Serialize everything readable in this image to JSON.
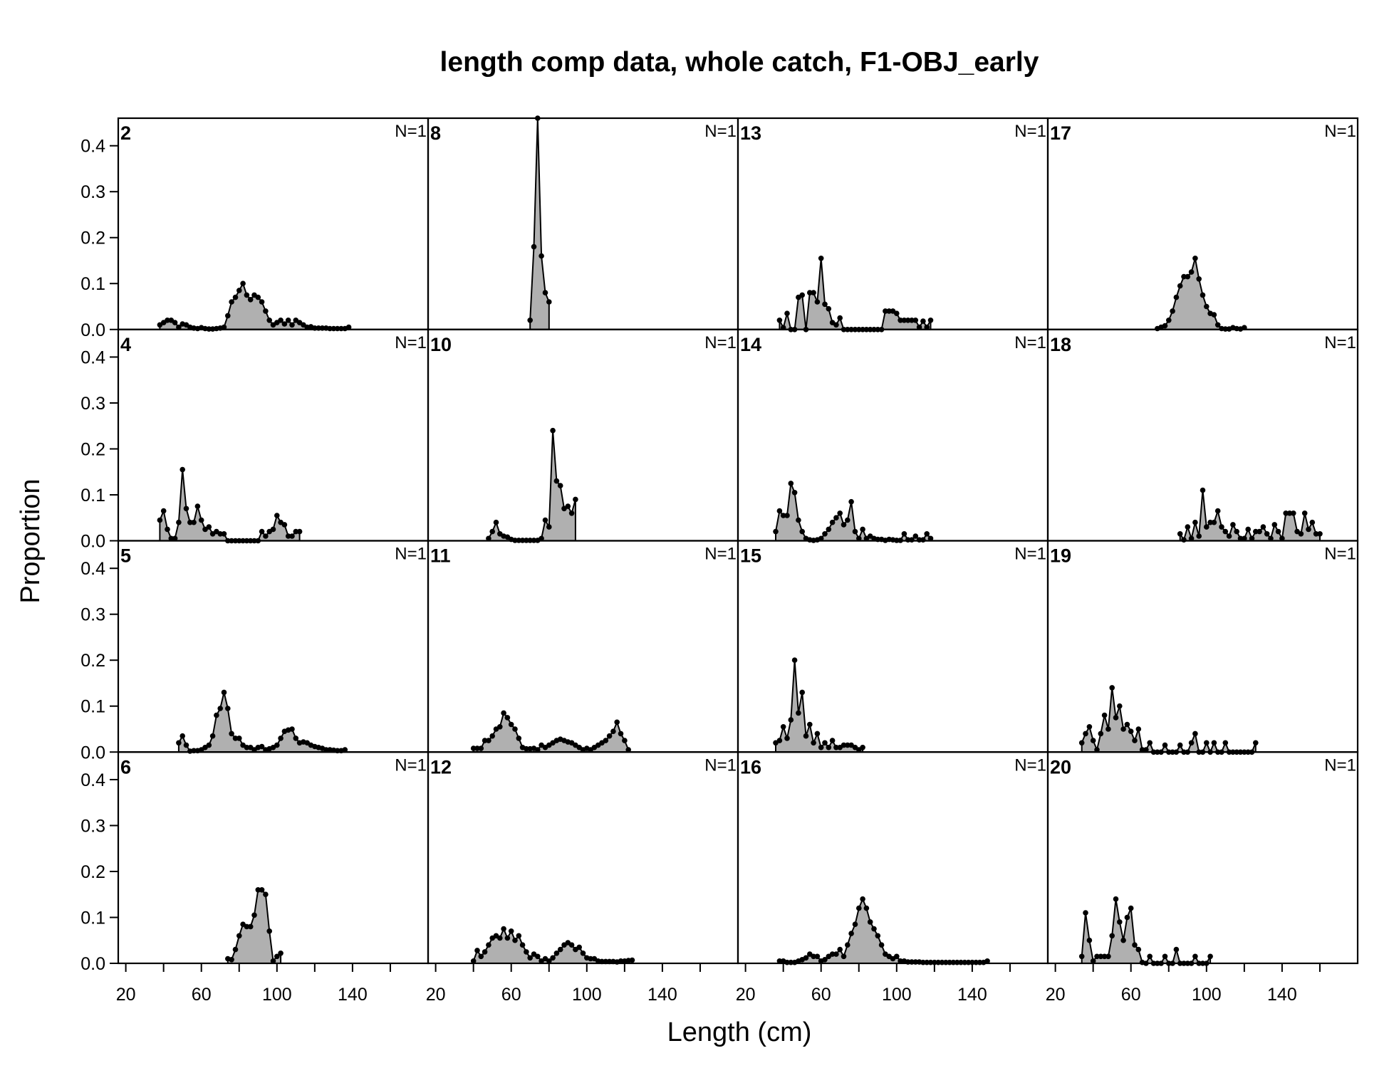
{
  "chart_data": {
    "type": "area",
    "title": "length comp data, whole catch, F1-OBJ_early",
    "xlabel": "Length (cm)",
    "ylabel": "Proportion",
    "xlim": [
      16,
      180
    ],
    "ylim": [
      0,
      0.46
    ],
    "x_ticks": [
      20,
      60,
      100,
      140
    ],
    "x_minor_ticks": [
      40,
      80,
      120,
      160
    ],
    "y_ticks": [
      "0.0",
      "0.1",
      "0.2",
      "0.3",
      "0.4"
    ],
    "layout": {
      "columns": 4,
      "rows": 4
    },
    "panels": [
      {
        "label": "2",
        "n": "N=1",
        "x": [
          38,
          40,
          42,
          44,
          46,
          48,
          50,
          52,
          54,
          56,
          58,
          60,
          62,
          64,
          66,
          68,
          70,
          72,
          74,
          76,
          78,
          80,
          82,
          84,
          86,
          88,
          90,
          92,
          94,
          96,
          98,
          100,
          102,
          104,
          106,
          108,
          110,
          112,
          114,
          116,
          118,
          120,
          122,
          124,
          126,
          128,
          130,
          132,
          134,
          136,
          138
        ],
        "y": [
          0.01,
          0.015,
          0.02,
          0.02,
          0.015,
          0.005,
          0.012,
          0.01,
          0.005,
          0.003,
          0.002,
          0.004,
          0.002,
          0.001,
          0.001,
          0.002,
          0.003,
          0.005,
          0.03,
          0.06,
          0.07,
          0.085,
          0.1,
          0.075,
          0.065,
          0.075,
          0.07,
          0.06,
          0.04,
          0.02,
          0.01,
          0.015,
          0.02,
          0.012,
          0.02,
          0.01,
          0.02,
          0.015,
          0.01,
          0.005,
          0.006,
          0.003,
          0.003,
          0.003,
          0.003,
          0.002,
          0.002,
          0.002,
          0.002,
          0.002,
          0.005
        ]
      },
      {
        "label": "4",
        "n": "N=1",
        "x": [
          38,
          40,
          42,
          44,
          46,
          48,
          50,
          52,
          54,
          56,
          58,
          60,
          62,
          64,
          66,
          68,
          70,
          72,
          74,
          76,
          78,
          80,
          82,
          84,
          86,
          88,
          90,
          92,
          94,
          96,
          98,
          100,
          102,
          104,
          106,
          108,
          110,
          112
        ],
        "y": [
          0.045,
          0.065,
          0.025,
          0.005,
          0.005,
          0.04,
          0.155,
          0.07,
          0.04,
          0.04,
          0.075,
          0.045,
          0.025,
          0.03,
          0.015,
          0.02,
          0.015,
          0.015,
          0,
          0,
          0,
          0,
          0,
          0,
          0,
          0,
          0,
          0.02,
          0.01,
          0.02,
          0.025,
          0.055,
          0.04,
          0.035,
          0.01,
          0.01,
          0.02,
          0.02
        ]
      },
      {
        "label": "5",
        "n": "N=1",
        "x": [
          48,
          50,
          52,
          54,
          56,
          58,
          60,
          62,
          64,
          66,
          68,
          70,
          72,
          74,
          76,
          78,
          80,
          82,
          84,
          86,
          88,
          90,
          92,
          94,
          96,
          98,
          100,
          102,
          104,
          106,
          108,
          110,
          112,
          114,
          116,
          118,
          120,
          122,
          124,
          126,
          128,
          130,
          132,
          134,
          136
        ],
        "y": [
          0.02,
          0.035,
          0.015,
          0.002,
          0.003,
          0.003,
          0.005,
          0.01,
          0.015,
          0.035,
          0.08,
          0.095,
          0.13,
          0.095,
          0.04,
          0.03,
          0.03,
          0.015,
          0.01,
          0.01,
          0.005,
          0.01,
          0.012,
          0.005,
          0.007,
          0.01,
          0.015,
          0.03,
          0.045,
          0.048,
          0.05,
          0.03,
          0.02,
          0.022,
          0.02,
          0.015,
          0.012,
          0.01,
          0.008,
          0.005,
          0.005,
          0.004,
          0.003,
          0.003,
          0.005
        ]
      },
      {
        "label": "6",
        "n": "N=1",
        "x": [
          74,
          76,
          78,
          80,
          82,
          84,
          86,
          88,
          90,
          92,
          94,
          96,
          98,
          100,
          102
        ],
        "y": [
          0.01,
          0.008,
          0.03,
          0.06,
          0.085,
          0.08,
          0.08,
          0.105,
          0.16,
          0.16,
          0.15,
          0.07,
          0.005,
          0.015,
          0.022
        ]
      },
      {
        "label": "8",
        "n": "N=1",
        "x": [
          70,
          72,
          74,
          76,
          78,
          80
        ],
        "y": [
          0.02,
          0.18,
          0.46,
          0.16,
          0.08,
          0.06
        ]
      },
      {
        "label": "10",
        "n": "N=1",
        "x": [
          48,
          50,
          52,
          54,
          56,
          58,
          60,
          62,
          64,
          66,
          68,
          70,
          72,
          74,
          76,
          78,
          80,
          82,
          84,
          86,
          88,
          90,
          92,
          94
        ],
        "y": [
          0.005,
          0.02,
          0.04,
          0.015,
          0.01,
          0.008,
          0.003,
          0.001,
          0.001,
          0.001,
          0.001,
          0.001,
          0.001,
          0.001,
          0.005,
          0.045,
          0.03,
          0.24,
          0.13,
          0.12,
          0.07,
          0.075,
          0.06,
          0.09
        ]
      },
      {
        "label": "11",
        "n": "N=1",
        "x": [
          40,
          42,
          44,
          46,
          48,
          50,
          52,
          54,
          56,
          58,
          60,
          62,
          64,
          66,
          68,
          70,
          72,
          74,
          76,
          78,
          80,
          82,
          84,
          86,
          88,
          90,
          92,
          94,
          96,
          98,
          100,
          102,
          104,
          106,
          108,
          110,
          112,
          114,
          116,
          118,
          120,
          122
        ],
        "y": [
          0.008,
          0.008,
          0.008,
          0.025,
          0.025,
          0.035,
          0.05,
          0.055,
          0.085,
          0.075,
          0.06,
          0.05,
          0.03,
          0.01,
          0.007,
          0.007,
          0.008,
          0.005,
          0.015,
          0.01,
          0.015,
          0.02,
          0.025,
          0.028,
          0.025,
          0.022,
          0.02,
          0.015,
          0.01,
          0.005,
          0.008,
          0.005,
          0.01,
          0.015,
          0.02,
          0.025,
          0.035,
          0.045,
          0.065,
          0.04,
          0.025,
          0.005
        ]
      },
      {
        "label": "12",
        "n": "N=1",
        "x": [
          40,
          42,
          44,
          46,
          48,
          50,
          52,
          54,
          56,
          58,
          60,
          62,
          64,
          66,
          68,
          70,
          72,
          74,
          76,
          78,
          80,
          82,
          84,
          86,
          88,
          90,
          92,
          94,
          96,
          98,
          100,
          102,
          104,
          106,
          108,
          110,
          112,
          114,
          116,
          118,
          120,
          122,
          124
        ],
        "y": [
          0.005,
          0.028,
          0.015,
          0.025,
          0.04,
          0.055,
          0.06,
          0.055,
          0.075,
          0.055,
          0.07,
          0.05,
          0.06,
          0.04,
          0.025,
          0.012,
          0.02,
          0.015,
          0.005,
          0.01,
          0.005,
          0.012,
          0.022,
          0.03,
          0.04,
          0.045,
          0.04,
          0.03,
          0.035,
          0.022,
          0.012,
          0.01,
          0.01,
          0.005,
          0.004,
          0.004,
          0.004,
          0.004,
          0.003,
          0.005,
          0.005,
          0.006,
          0.007
        ]
      },
      {
        "label": "13",
        "n": "N=1",
        "x": [
          38,
          40,
          42,
          44,
          46,
          48,
          50,
          52,
          54,
          56,
          58,
          60,
          62,
          64,
          66,
          68,
          70,
          72,
          74,
          76,
          78,
          80,
          82,
          84,
          86,
          88,
          90,
          92,
          94,
          96,
          98,
          100,
          102,
          104,
          106,
          108,
          110,
          112,
          114,
          116,
          118
        ],
        "y": [
          0.02,
          0.004,
          0.035,
          0,
          0,
          0.07,
          0.075,
          0,
          0.08,
          0.08,
          0.06,
          0.155,
          0.055,
          0.045,
          0.015,
          0.01,
          0.025,
          0,
          0,
          0,
          0,
          0,
          0,
          0,
          0,
          0,
          0,
          0,
          0.04,
          0.04,
          0.04,
          0.035,
          0.02,
          0.02,
          0.02,
          0.02,
          0.02,
          0.005,
          0.018,
          0.005,
          0.02
        ]
      },
      {
        "label": "14",
        "n": "N=1",
        "x": [
          36,
          38,
          40,
          42,
          44,
          46,
          48,
          50,
          52,
          54,
          56,
          58,
          60,
          62,
          64,
          66,
          68,
          70,
          72,
          74,
          76,
          78,
          80,
          82,
          84,
          86,
          88,
          90,
          92,
          94,
          96,
          98,
          100,
          102,
          104,
          106,
          108,
          110,
          112,
          114,
          116,
          118
        ],
        "y": [
          0.02,
          0.065,
          0.055,
          0.055,
          0.125,
          0.105,
          0.045,
          0.02,
          0.005,
          0.002,
          0.001,
          0.002,
          0.005,
          0.015,
          0.025,
          0.04,
          0.05,
          0.06,
          0.035,
          0.045,
          0.085,
          0.02,
          0.005,
          0.025,
          0.005,
          0.01,
          0.005,
          0.003,
          0.003,
          0.001,
          0.003,
          0.002,
          0.001,
          0.001,
          0.015,
          0.002,
          0.002,
          0.01,
          0.002,
          0.002,
          0.015,
          0.005
        ]
      },
      {
        "label": "15",
        "n": "N=1",
        "x": [
          36,
          38,
          40,
          42,
          44,
          46,
          48,
          50,
          52,
          54,
          56,
          58,
          60,
          62,
          64,
          66,
          68,
          70,
          72,
          74,
          76,
          78,
          80,
          82
        ],
        "y": [
          0.02,
          0.025,
          0.055,
          0.03,
          0.07,
          0.2,
          0.085,
          0.13,
          0.035,
          0.06,
          0.02,
          0.04,
          0.01,
          0.02,
          0.01,
          0.025,
          0.01,
          0.01,
          0.015,
          0.015,
          0.015,
          0.01,
          0.005,
          0.01
        ]
      },
      {
        "label": "16",
        "n": "N=1",
        "x": [
          38,
          40,
          42,
          44,
          46,
          48,
          50,
          52,
          54,
          56,
          58,
          60,
          62,
          64,
          66,
          68,
          70,
          72,
          74,
          76,
          78,
          80,
          82,
          84,
          86,
          88,
          90,
          92,
          94,
          96,
          98,
          100,
          102,
          104,
          106,
          108,
          110,
          112,
          114,
          116,
          118,
          120,
          122,
          124,
          126,
          128,
          130,
          132,
          134,
          136,
          138,
          140,
          142,
          144,
          146,
          148
        ],
        "y": [
          0.005,
          0.005,
          0.002,
          0.002,
          0.002,
          0.005,
          0.008,
          0.012,
          0.02,
          0.015,
          0.015,
          0.005,
          0.008,
          0.015,
          0.02,
          0.02,
          0.03,
          0.015,
          0.04,
          0.065,
          0.085,
          0.12,
          0.14,
          0.12,
          0.09,
          0.075,
          0.06,
          0.04,
          0.02,
          0.015,
          0.01,
          0.015,
          0.005,
          0.005,
          0.003,
          0.003,
          0.003,
          0.003,
          0.002,
          0.002,
          0.002,
          0.002,
          0.002,
          0.002,
          0.002,
          0.002,
          0.002,
          0.002,
          0.002,
          0.002,
          0.002,
          0.002,
          0.002,
          0.002,
          0.002,
          0.005
        ]
      },
      {
        "label": "17",
        "n": "N=1",
        "x": [
          74,
          76,
          78,
          80,
          82,
          84,
          86,
          88,
          90,
          92,
          94,
          96,
          98,
          100,
          102,
          104,
          106,
          108,
          110,
          112,
          114,
          116,
          118,
          120
        ],
        "y": [
          0.002,
          0.005,
          0.008,
          0.02,
          0.04,
          0.07,
          0.095,
          0.115,
          0.115,
          0.125,
          0.155,
          0.11,
          0.075,
          0.05,
          0.035,
          0.032,
          0.01,
          0.002,
          0.001,
          0.001,
          0.004,
          0.002,
          0.001,
          0.004
        ]
      },
      {
        "label": "18",
        "n": "N=1",
        "x": [
          86,
          88,
          90,
          92,
          94,
          96,
          98,
          100,
          102,
          104,
          106,
          108,
          110,
          112,
          114,
          116,
          118,
          120,
          122,
          124,
          126,
          128,
          130,
          132,
          134,
          136,
          138,
          140,
          142,
          144,
          146,
          148,
          150,
          152,
          154,
          156,
          158,
          160
        ],
        "y": [
          0.015,
          0.002,
          0.03,
          0.005,
          0.04,
          0.01,
          0.11,
          0.03,
          0.04,
          0.04,
          0.065,
          0.03,
          0.02,
          0.01,
          0.035,
          0.02,
          0.005,
          0.005,
          0.025,
          0.005,
          0.02,
          0.02,
          0.03,
          0.015,
          0.005,
          0.035,
          0.02,
          0.005,
          0.06,
          0.06,
          0.06,
          0.02,
          0.015,
          0.06,
          0.025,
          0.04,
          0.015,
          0.015
        ]
      },
      {
        "label": "19",
        "n": "N=1",
        "x": [
          34,
          36,
          38,
          40,
          42,
          44,
          46,
          48,
          50,
          52,
          54,
          56,
          58,
          60,
          62,
          64,
          66,
          68,
          70,
          72,
          74,
          76,
          78,
          80,
          82,
          84,
          86,
          88,
          90,
          92,
          94,
          96,
          98,
          100,
          102,
          104,
          106,
          108,
          110,
          112,
          114,
          116,
          118,
          120,
          122,
          124,
          126
        ],
        "y": [
          0.02,
          0.04,
          0.055,
          0.025,
          0.005,
          0.04,
          0.08,
          0.05,
          0.14,
          0.075,
          0.1,
          0.05,
          0.06,
          0.045,
          0.025,
          0.05,
          0.005,
          0.005,
          0.02,
          0,
          0,
          0,
          0.015,
          0,
          0,
          0,
          0.015,
          0,
          0,
          0.02,
          0.04,
          0,
          0,
          0.02,
          0,
          0.02,
          0,
          0,
          0.02,
          0,
          0,
          0,
          0,
          0,
          0,
          0,
          0.02
        ]
      },
      {
        "label": "20",
        "n": "N=1",
        "x": [
          34,
          36,
          38,
          40,
          42,
          44,
          46,
          48,
          50,
          52,
          54,
          56,
          58,
          60,
          62,
          64,
          66,
          68,
          70,
          72,
          74,
          76,
          78,
          80,
          82,
          84,
          86,
          88,
          90,
          92,
          94,
          96,
          98,
          100,
          102
        ],
        "y": [
          0.015,
          0.11,
          0.05,
          0.005,
          0.015,
          0.015,
          0.015,
          0.015,
          0.06,
          0.14,
          0.09,
          0.05,
          0.1,
          0.12,
          0.04,
          0.03,
          0.002,
          0,
          0.015,
          0,
          0,
          0,
          0.015,
          0,
          0,
          0.03,
          0,
          0,
          0,
          0,
          0.015,
          0,
          0,
          0,
          0.015
        ]
      }
    ]
  }
}
